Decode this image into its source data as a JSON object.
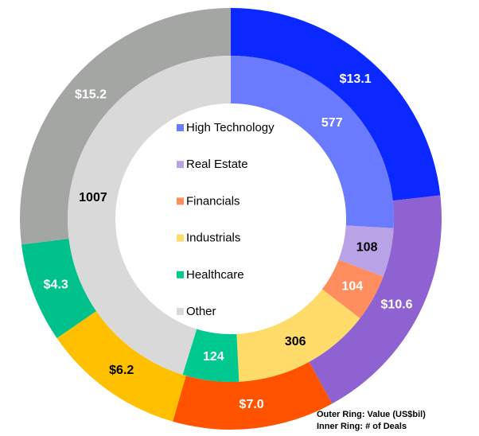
{
  "chart_data": {
    "type": "donut",
    "categories": [
      "High Technology",
      "Real Estate",
      "Financials",
      "Industrials",
      "Healthcare",
      "Other"
    ],
    "series": [
      {
        "values": [
          13.1,
          10.6,
          7.0,
          6.2,
          4.3,
          15.2
        ],
        "value_labels": [
          "$13.1",
          "$10.6",
          "$7.0",
          "$6.2",
          "$4.3",
          "$15.2"
        ],
        "colors": [
          "#0a28ff",
          "#8e62d0",
          "#ff5300",
          "#ffc000",
          "#00c18c",
          "#a3a6a3"
        ]
      },
      {
        "values": [
          577,
          108,
          104,
          306,
          124,
          1007
        ],
        "colors": [
          "#6b7bff",
          "#b9a2e6",
          "#ff8d5e",
          "#ffdc69",
          "#00c98f",
          "#d9d9d9"
        ]
      }
    ],
    "annotations": [
      "Outer Ring: Value (US$bil)",
      "Inner Ring: # of Deals"
    ]
  }
}
